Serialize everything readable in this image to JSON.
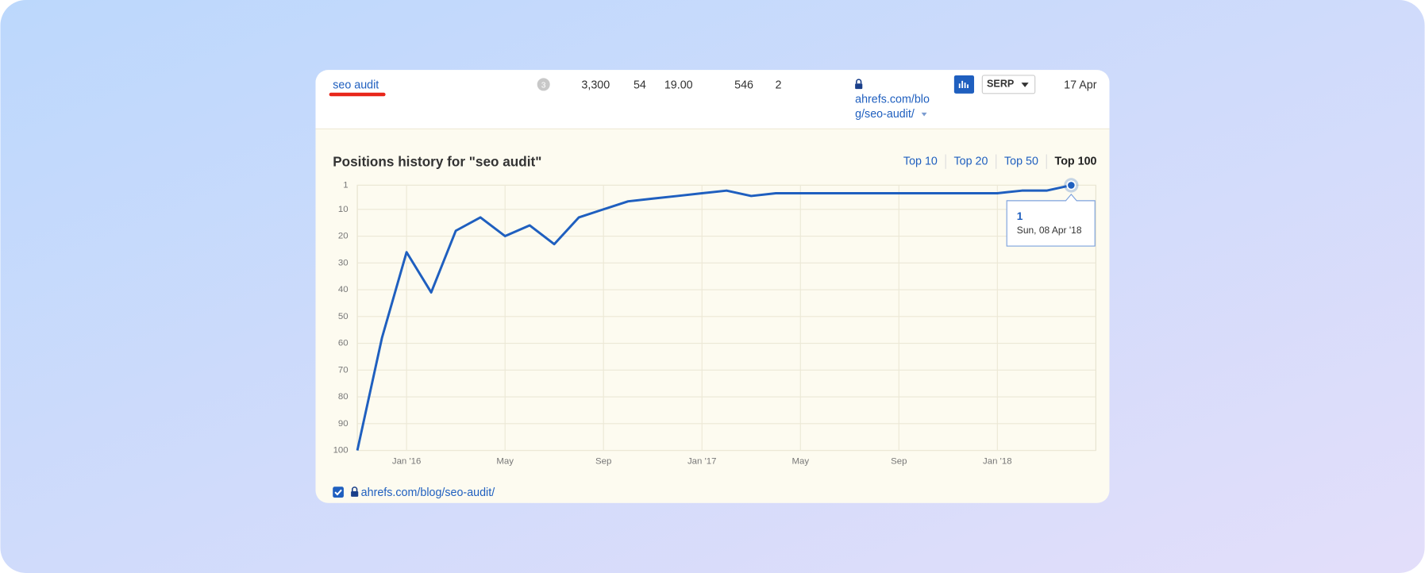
{
  "row": {
    "keyword": "seo audit",
    "serp_features": "3",
    "volume": "3,300",
    "kd": "54",
    "cpc": "19.00",
    "traffic": "546",
    "position": "2",
    "url": [
      "ahrefs.com/blo",
      "g/seo-audit/"
    ],
    "serp_button": "SERP",
    "updated": "17 Apr"
  },
  "chart_data": {
    "type": "line",
    "title": "Positions history for \"seo audit\"",
    "filters": [
      "Top 10",
      "Top 20",
      "Top 50",
      "Top 100"
    ],
    "x": [
      "2015-11",
      "2015-12",
      "2016-01",
      "2016-02",
      "2016-03",
      "2016-04",
      "2016-05",
      "2016-06",
      "2016-07",
      "2016-08",
      "2016-09",
      "2016-10",
      "2016-11",
      "2016-12",
      "2017-01",
      "2017-02",
      "2017-03",
      "2017-04",
      "2017-05",
      "2017-06",
      "2017-07",
      "2017-08",
      "2017-09",
      "2017-10",
      "2017-11",
      "2017-12",
      "2018-01",
      "2018-02",
      "2018-03",
      "2018-04"
    ],
    "series": [
      {
        "name": "ahrefs.com/blog/seo-audit/",
        "color": "#1f5fbf",
        "values": [
          100,
          58,
          26,
          41,
          18,
          13,
          20,
          16,
          23,
          13,
          10,
          7,
          6,
          5,
          4,
          3,
          5,
          4,
          4,
          4,
          4,
          4,
          4,
          4,
          4,
          4,
          4,
          3,
          3,
          1
        ]
      }
    ],
    "xlim": [
      "2015-11",
      "2018-05"
    ],
    "xticks": [
      {
        "value": "2016-01",
        "label": "Jan '16"
      },
      {
        "value": "2016-05",
        "label": "May"
      },
      {
        "value": "2016-09",
        "label": "Sep"
      },
      {
        "value": "2017-01",
        "label": "Jan '17"
      },
      {
        "value": "2017-05",
        "label": "May"
      },
      {
        "value": "2017-09",
        "label": "Sep"
      },
      {
        "value": "2018-01",
        "label": "Jan '18"
      }
    ],
    "ylim": [
      100,
      1
    ],
    "yticks": [
      1,
      10,
      20,
      30,
      40,
      50,
      60,
      70,
      80,
      90,
      100
    ],
    "grid": true,
    "tooltip": {
      "value": 1,
      "date": "Sun, 08 Apr '18"
    }
  }
}
